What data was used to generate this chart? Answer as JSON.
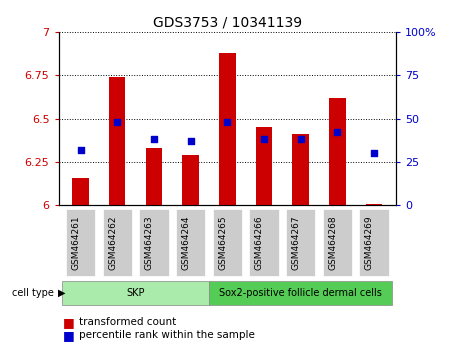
{
  "title": "GDS3753 / 10341139",
  "samples": [
    "GSM464261",
    "GSM464262",
    "GSM464263",
    "GSM464264",
    "GSM464265",
    "GSM464266",
    "GSM464267",
    "GSM464268",
    "GSM464269"
  ],
  "transformed_counts": [
    6.16,
    6.74,
    6.33,
    6.29,
    6.88,
    6.45,
    6.41,
    6.62,
    6.01
  ],
  "percentile_ranks": [
    32,
    48,
    38,
    37,
    48,
    38,
    38,
    42,
    30
  ],
  "ylim_left": [
    6.0,
    7.0
  ],
  "ylim_right": [
    0,
    100
  ],
  "yticks_left": [
    6.0,
    6.25,
    6.5,
    6.75,
    7.0
  ],
  "ytick_labels_left": [
    "6",
    "6.25",
    "6.5",
    "6.75",
    "7"
  ],
  "yticks_right": [
    0,
    25,
    50,
    75,
    100
  ],
  "ytick_labels_right": [
    "0",
    "25",
    "50",
    "75",
    "100%"
  ],
  "cell_types": [
    {
      "label": "SKP",
      "samples_range": [
        0,
        4
      ],
      "color": "#aaeaaa"
    },
    {
      "label": "Sox2-positive follicle dermal cells",
      "samples_range": [
        4,
        9
      ],
      "color": "#55cc55"
    }
  ],
  "bar_color": "#CC0000",
  "dot_color": "#0000CC",
  "bar_width": 0.45,
  "background_color": "#ffffff",
  "legend_bar_label": "transformed count",
  "legend_dot_label": "percentile rank within the sample",
  "cell_type_label": "cell type"
}
